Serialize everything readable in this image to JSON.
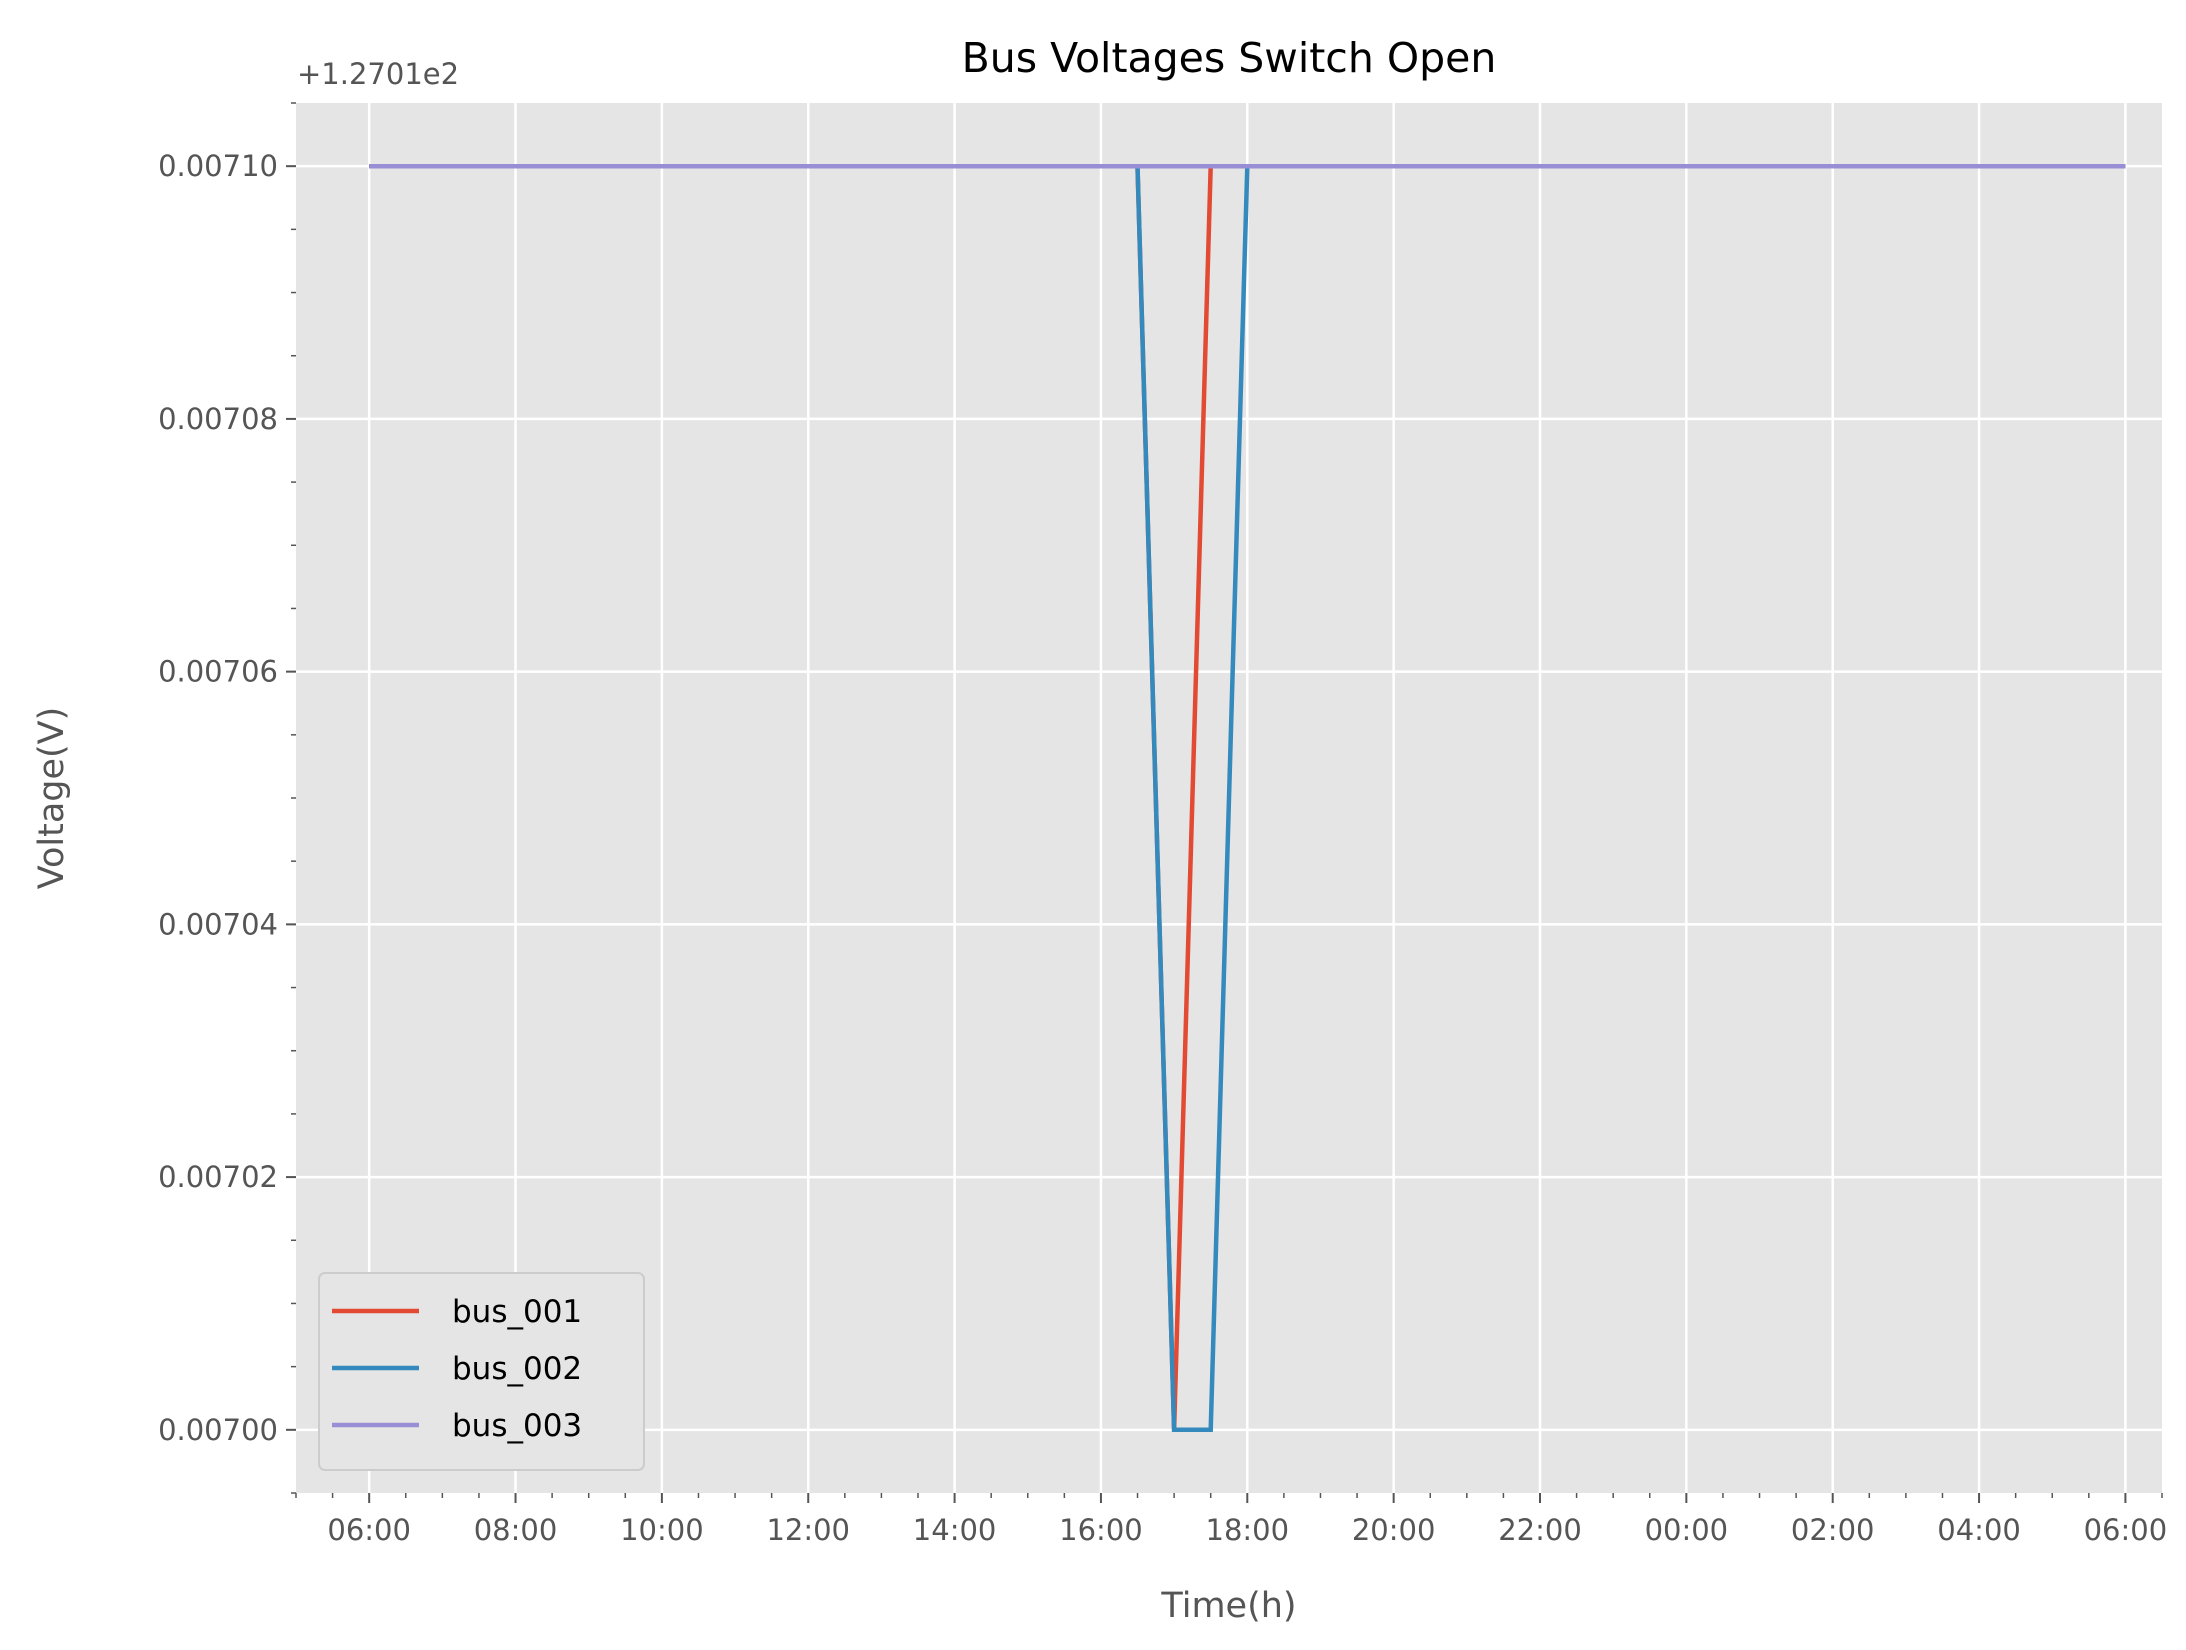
{
  "chart_data": {
    "type": "line",
    "title": "Bus Voltages Switch Open",
    "xlabel": "Time(h)",
    "ylabel": "Voltage(V)",
    "offset_label": "+1.2701e2",
    "xlim": [
      "05:00",
      "06:30 (+1 day)"
    ],
    "ylim": [
      0.006995,
      0.007105
    ],
    "x_ticks": [
      "06:00",
      "08:00",
      "10:00",
      "12:00",
      "14:00",
      "16:00",
      "18:00",
      "20:00",
      "22:00",
      "00:00",
      "02:00",
      "04:00",
      "06:00"
    ],
    "y_ticks": [
      "0.00700",
      "0.00702",
      "0.00704",
      "0.00706",
      "0.00708",
      "0.00710"
    ],
    "grid": true,
    "legend_position": "lower-left",
    "series": [
      {
        "name": "bus_001",
        "color": "#E24A33",
        "x": [
          "06:00",
          "16:30",
          "17:00",
          "17:30",
          "18:00",
          "06:00 (+1 day)"
        ],
        "y": [
          0.0071,
          0.0071,
          0.007,
          0.0071,
          0.0071,
          0.0071
        ]
      },
      {
        "name": "bus_002",
        "color": "#348ABD",
        "x": [
          "06:00",
          "16:30",
          "17:00",
          "17:30",
          "18:00",
          "06:00 (+1 day)"
        ],
        "y": [
          0.0071,
          0.0071,
          0.007,
          0.007,
          0.0071,
          0.0071
        ]
      },
      {
        "name": "bus_003",
        "color": "#988ED5",
        "x": [
          "06:00",
          "06:00 (+1 day)"
        ],
        "y": [
          0.0071,
          0.0071
        ]
      }
    ]
  }
}
